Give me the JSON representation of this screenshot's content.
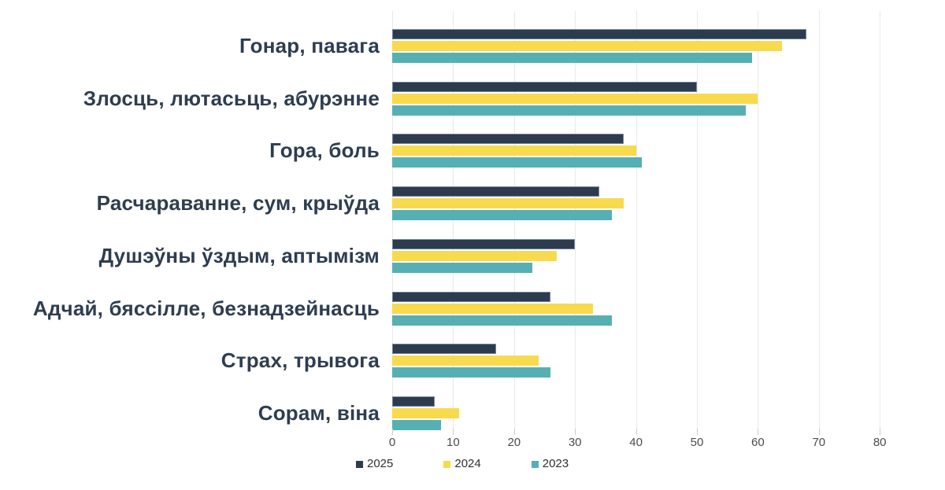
{
  "chart_data": {
    "type": "bar",
    "orientation": "horizontal",
    "title": "",
    "categories": [
      "Гонар, павага",
      "Злосць, лютасьць, абурэнне",
      "Гора, боль",
      "Расчараванне, сум, крыўда",
      "Душэўны ўздым, аптымізм",
      "Адчай, бяссілле, безнадзейнасць",
      "Страх, трывога",
      "Сорам, віна"
    ],
    "series": [
      {
        "name": "2025",
        "color": "#2d3b4e",
        "values": [
          68,
          50,
          38,
          34,
          30,
          26,
          17,
          7
        ]
      },
      {
        "name": "2024",
        "color": "#f8da4e",
        "values": [
          64,
          60,
          40,
          38,
          27,
          33,
          24,
          11
        ]
      },
      {
        "name": "2023",
        "color": "#56b0b3",
        "values": [
          59,
          58,
          41,
          36,
          23,
          36,
          26,
          8
        ]
      }
    ],
    "xlim": [
      0,
      80
    ],
    "xticks": [
      0,
      10,
      20,
      30,
      40,
      50,
      60,
      70,
      80
    ],
    "grid": "vertical",
    "legend_position": "bottom",
    "legend_entries": [
      "2025",
      "2024",
      "2023"
    ]
  },
  "colors": {
    "background": "#ffffff",
    "series_2025": "#2d3b4e",
    "series_2024": "#f8da4e",
    "series_2023": "#56b0b3",
    "bar_2025_border": "#75839a",
    "gridline": "#e8e9ee",
    "tick": "#c9cbd2",
    "tick_label": "#4c4c4c",
    "category_label": "#2e3d50",
    "legend_text": "#2f2f2f"
  }
}
